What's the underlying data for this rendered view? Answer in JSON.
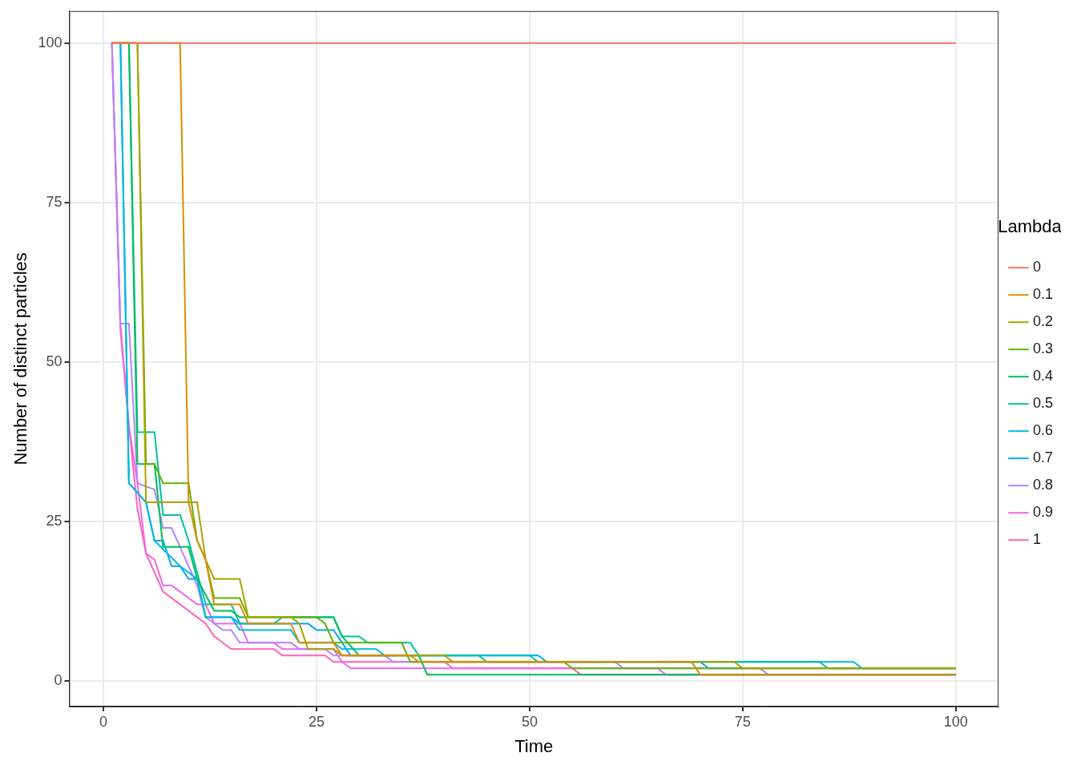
{
  "chart_data": {
    "type": "line",
    "x_label": "Time",
    "y_label": "Number of distinct particles",
    "legend_title": "Lambda",
    "legend": "right",
    "grid": true,
    "xlim": [
      -4,
      105
    ],
    "xticks": [
      0,
      25,
      50,
      75,
      100
    ],
    "ylim": [
      -4,
      105
    ],
    "yticks": [
      0,
      25,
      50,
      75,
      100
    ],
    "series": [
      {
        "name": "0",
        "color": "#F8766D",
        "x": [
          1,
          100
        ],
        "values": [
          100,
          100
        ]
      },
      {
        "name": "0.1",
        "color": "#DB8E00",
        "x": [
          1,
          9,
          10,
          11,
          12,
          13,
          16,
          17,
          22,
          23,
          27,
          28,
          36,
          37,
          69,
          70,
          100
        ],
        "values": [
          100,
          100,
          28,
          22,
          19,
          12,
          12,
          9,
          9,
          6,
          6,
          4,
          4,
          3,
          3,
          1,
          1
        ]
      },
      {
        "name": "0.2",
        "color": "#AEA200",
        "x": [
          1,
          4,
          5,
          11,
          12,
          13,
          16,
          17,
          22,
          23,
          24,
          27,
          28,
          40,
          41,
          74,
          75,
          100
        ],
        "values": [
          100,
          100,
          28,
          28,
          19,
          16,
          16,
          10,
          10,
          9,
          5,
          5,
          4,
          4,
          3,
          3,
          2,
          2
        ]
      },
      {
        "name": "0.3",
        "color": "#64B200",
        "x": [
          1,
          4,
          5,
          6,
          7,
          10,
          11,
          12,
          13,
          16,
          17,
          25,
          26,
          27,
          35,
          36,
          54,
          55,
          100
        ],
        "values": [
          100,
          100,
          34,
          34,
          31,
          31,
          22,
          19,
          13,
          13,
          10,
          10,
          9,
          6,
          6,
          3,
          3,
          2,
          2
        ]
      },
      {
        "name": "0.4",
        "color": "#00BD5C",
        "x": [
          1,
          3,
          4,
          6,
          7,
          10,
          11,
          13,
          15,
          16,
          27,
          28,
          30,
          37,
          38,
          100
        ],
        "values": [
          100,
          100,
          34,
          34,
          21,
          21,
          16,
          11,
          11,
          10,
          10,
          7,
          4,
          4,
          1,
          1
        ]
      },
      {
        "name": "0.5",
        "color": "#00C1A7",
        "x": [
          1,
          3,
          4,
          6,
          7,
          9,
          10,
          12,
          15,
          16,
          20,
          21,
          27,
          28,
          30,
          31,
          36,
          37,
          44,
          45,
          84,
          85,
          100
        ],
        "values": [
          100,
          100,
          39,
          39,
          26,
          26,
          22,
          12,
          12,
          9,
          9,
          10,
          10,
          7,
          7,
          6,
          6,
          4,
          4,
          3,
          3,
          2,
          2
        ]
      },
      {
        "name": "0.6",
        "color": "#00BADE",
        "x": [
          1,
          2,
          3,
          5,
          6,
          9,
          11,
          12,
          15,
          16,
          22,
          23,
          27,
          28,
          32,
          33,
          50,
          51,
          88,
          89,
          100
        ],
        "values": [
          100,
          100,
          31,
          28,
          22,
          18,
          16,
          10,
          10,
          8,
          8,
          6,
          6,
          5,
          5,
          4,
          4,
          3,
          3,
          2,
          2
        ]
      },
      {
        "name": "0.7",
        "color": "#00A6FF",
        "x": [
          1,
          2,
          3,
          5,
          6,
          7,
          8,
          9,
          10,
          11,
          12,
          15,
          16,
          24,
          25,
          27,
          28,
          29,
          51,
          52,
          70,
          71,
          100
        ],
        "values": [
          100,
          100,
          31,
          28,
          22,
          22,
          18,
          18,
          16,
          16,
          10,
          10,
          9,
          9,
          8,
          8,
          6,
          4,
          4,
          3,
          3,
          2,
          2
        ]
      },
      {
        "name": "0.8",
        "color": "#B385FF",
        "x": [
          1,
          2,
          3,
          4,
          6,
          7,
          8,
          9,
          11,
          12,
          14,
          15,
          16,
          22,
          23,
          26,
          27,
          33,
          34,
          60,
          61,
          77,
          78,
          100
        ],
        "values": [
          100,
          56,
          56,
          31,
          30,
          24,
          24,
          21,
          15,
          10,
          8,
          8,
          6,
          6,
          5,
          5,
          4,
          4,
          3,
          3,
          2,
          2,
          1,
          1
        ]
      },
      {
        "name": "0.9",
        "color": "#EF67EB",
        "x": [
          1,
          2,
          3,
          4,
          5,
          6,
          7,
          8,
          11,
          12,
          13,
          16,
          17,
          20,
          21,
          27,
          28,
          29,
          65,
          66,
          100
        ],
        "values": [
          100,
          56,
          40,
          31,
          20,
          19,
          15,
          15,
          12,
          12,
          9,
          9,
          6,
          6,
          5,
          5,
          3,
          2,
          2,
          1,
          1
        ]
      },
      {
        "name": "1",
        "color": "#FF63B6",
        "x": [
          1,
          2,
          3,
          4,
          5,
          7,
          12,
          13,
          15,
          20,
          21,
          26,
          27,
          40,
          41,
          55,
          56,
          100
        ],
        "values": [
          100,
          55,
          40,
          27,
          20,
          14,
          9,
          7,
          5,
          5,
          4,
          4,
          3,
          3,
          2,
          2,
          1,
          1
        ]
      }
    ]
  }
}
